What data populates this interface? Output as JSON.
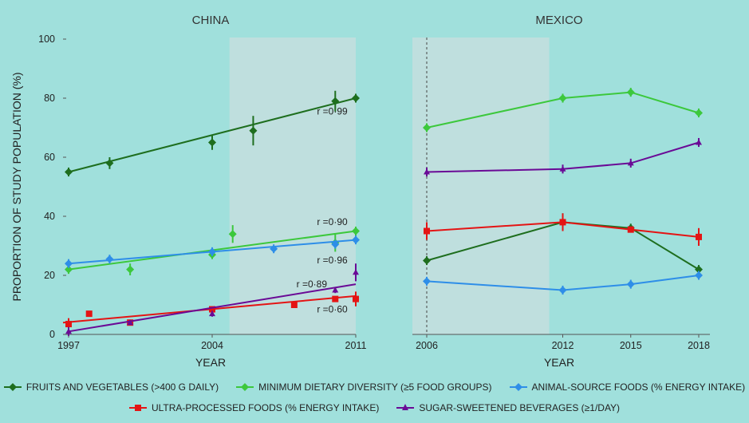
{
  "colors": {
    "fruits_veg": "#1e6e1e",
    "min_diet": "#3cc83c",
    "animal": "#2e8ee8",
    "ultra": "#e41414",
    "ssb": "#6a0a96"
  },
  "legend": {
    "items": [
      {
        "key": "fruits_veg",
        "label": "FRUITS AND VEGETABLES (>400 G DAILY)",
        "marker": "diamond"
      },
      {
        "key": "min_diet",
        "label": "MINIMUM DIETARY DIVERSITY (≥5 FOOD GROUPS)",
        "marker": "diamond"
      },
      {
        "key": "animal",
        "label": "ANIMAL-SOURCE FOODS (% ENERGY INTAKE)",
        "marker": "diamond"
      },
      {
        "key": "ultra",
        "label": "ULTRA-PROCESSED FOODS (% ENERGY INTAKE)",
        "marker": "square"
      },
      {
        "key": "ssb",
        "label": "SUGAR-SWEETENED BEVERAGES (≥1/DAY)",
        "marker": "triangle"
      }
    ]
  },
  "chart_data": [
    {
      "type": "scatter",
      "title": "CHINA",
      "xlabel": "YEAR",
      "ylabel": "PROPORTION OF STUDY POPULATION (%)",
      "xlim": [
        1997,
        2011
      ],
      "ylim": [
        0,
        100
      ],
      "x_ticks": [
        "1997",
        "2004",
        "2011"
      ],
      "y_ticks": [
        "0",
        "20",
        "40",
        "60",
        "80",
        "100"
      ],
      "shaded_region": [
        2005,
        2011
      ],
      "series": [
        {
          "key": "fruits_veg",
          "name": "FRUITS AND VEGETABLES (>400 G DAILY)",
          "points": [
            [
              1997,
              55,
              1.5
            ],
            [
              1999,
              58,
              2
            ],
            [
              2004,
              65,
              2.5
            ],
            [
              2006,
              69,
              5
            ],
            [
              2010,
              79,
              3.5
            ],
            [
              2011,
              80,
              1.5
            ]
          ],
          "fit": [
            [
              1997,
              55
            ],
            [
              2011,
              80
            ]
          ],
          "r": "r =0·99"
        },
        {
          "key": "min_diet",
          "name": "MINIMUM DIETARY DIVERSITY (≥5 FOOD GROUPS)",
          "points": [
            [
              1997,
              22,
              1.5
            ],
            [
              2000,
              22,
              2
            ],
            [
              2004,
              27,
              1.5
            ],
            [
              2005,
              34,
              3
            ],
            [
              2010,
              31,
              3
            ],
            [
              2011,
              35,
              1.5
            ]
          ],
          "fit": [
            [
              1997,
              22
            ],
            [
              2011,
              35
            ]
          ],
          "r": "r =0·90"
        },
        {
          "key": "animal",
          "name": "ANIMAL-SOURCE FOODS (% ENERGY INTAKE)",
          "points": [
            [
              1997,
              24,
              1.5
            ],
            [
              1999,
              25.5,
              1.5
            ],
            [
              2004,
              28,
              1.5
            ],
            [
              2007,
              29,
              1.5
            ],
            [
              2010,
              30.5,
              1.5
            ],
            [
              2011,
              32,
              1.5
            ]
          ],
          "fit": [
            [
              1997,
              24
            ],
            [
              2011,
              32
            ]
          ],
          "r": "r =0·96"
        },
        {
          "key": "ultra",
          "name": "ULTRA-PROCESSED FOODS (% ENERGY INTAKE)",
          "points": [
            [
              1997,
              3.5,
              2
            ],
            [
              1998,
              7,
              0
            ],
            [
              2000,
              4,
              0
            ],
            [
              2004,
              8.5,
              0
            ],
            [
              2008,
              10,
              0
            ],
            [
              2010,
              12,
              0
            ],
            [
              2011,
              12,
              2.5
            ]
          ],
          "fit": [
            [
              1996,
              4
            ],
            [
              2011,
              13
            ]
          ],
          "r": "r =0·60"
        },
        {
          "key": "ssb",
          "name": "SUGAR-SWEETENED BEVERAGES (≥1/DAY)",
          "points": [
            [
              1997,
              1,
              1.5
            ],
            [
              2000,
              4,
              0.8
            ],
            [
              2004,
              7,
              1
            ],
            [
              2010,
              15,
              1
            ],
            [
              2011,
              21,
              3
            ]
          ],
          "fit": [
            [
              1997,
              1
            ],
            [
              2011,
              17
            ]
          ],
          "r": "r =0·89"
        }
      ]
    },
    {
      "type": "line",
      "title": "MEXICO",
      "xlabel": "YEAR",
      "xlim": [
        2006,
        2018
      ],
      "ylim": [
        0,
        100
      ],
      "x_ticks": [
        "2006",
        "2012",
        "2015",
        "2018"
      ],
      "shaded_region": [
        2006,
        2012
      ],
      "dashed_vline": 2006,
      "series": [
        {
          "key": "fruits_veg",
          "name": "FRUITS AND VEGETABLES (>400 G DAILY)",
          "points": [
            [
              2006,
              25,
              1.5
            ],
            [
              2012,
              38,
              3
            ],
            [
              2015,
              36,
              1.5
            ],
            [
              2018,
              22,
              1.5
            ]
          ]
        },
        {
          "key": "min_diet",
          "name": "MINIMUM DIETARY DIVERSITY (≥5 FOOD GROUPS)",
          "points": [
            [
              2006,
              70,
              1.5
            ],
            [
              2012,
              80,
              1.5
            ],
            [
              2015,
              82,
              1.5
            ],
            [
              2018,
              75,
              1.5
            ]
          ]
        },
        {
          "key": "animal",
          "name": "ANIMAL-SOURCE FOODS (% ENERGY INTAKE)",
          "points": [
            [
              2006,
              18,
              1.5
            ],
            [
              2012,
              15,
              1.5
            ],
            [
              2015,
              17,
              1.5
            ],
            [
              2018,
              20,
              1.5
            ]
          ]
        },
        {
          "key": "ultra",
          "name": "ULTRA-PROCESSED FOODS (% ENERGY INTAKE)",
          "points": [
            [
              2006,
              35,
              3
            ],
            [
              2012,
              38,
              3
            ],
            [
              2015,
              35.5,
              1
            ],
            [
              2018,
              33,
              3
            ]
          ]
        },
        {
          "key": "ssb",
          "name": "SUGAR-SWEETENED BEVERAGES (≥1/DAY)",
          "points": [
            [
              2006,
              55,
              1.5
            ],
            [
              2012,
              56,
              1.5
            ],
            [
              2015,
              58,
              1.5
            ],
            [
              2018,
              65,
              1.5
            ]
          ]
        }
      ]
    }
  ]
}
